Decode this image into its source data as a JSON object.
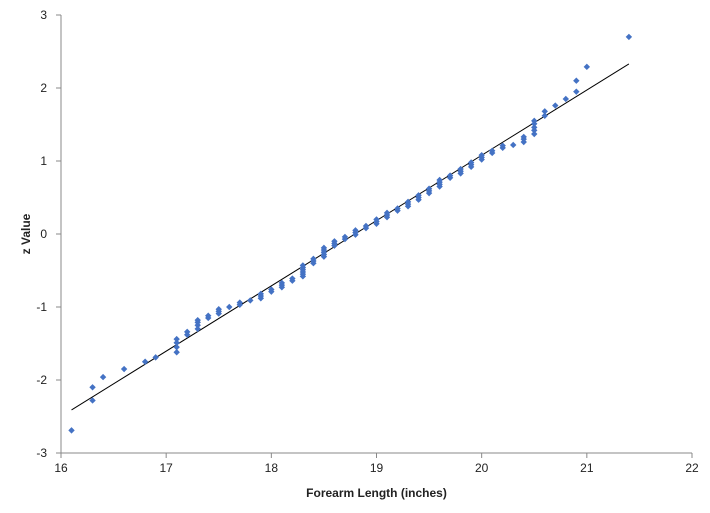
{
  "chart_data": {
    "type": "scatter",
    "title": "",
    "xlabel": "Forearm Length (inches)",
    "ylabel": "z Value",
    "xlim": [
      16,
      22
    ],
    "ylim": [
      -3,
      3
    ],
    "xticks": [
      "16",
      "17",
      "18",
      "19",
      "20",
      "21",
      "22"
    ],
    "yticks": [
      "-3",
      "-2",
      "-1",
      "0",
      "1",
      "2",
      "3"
    ],
    "grid": false,
    "legend": "none",
    "marker": "diamond",
    "colors": {
      "points": "#4472C4",
      "trendline": "#000000",
      "axis": "#888888"
    },
    "trendline": {
      "x": [
        16.1,
        21.4
      ],
      "y": [
        -2.41,
        2.33
      ]
    },
    "points": [
      [
        16.1,
        -2.69
      ],
      [
        16.3,
        -2.28
      ],
      [
        16.3,
        -2.1
      ],
      [
        16.4,
        -1.96
      ],
      [
        16.6,
        -1.85
      ],
      [
        16.8,
        -1.75
      ],
      [
        16.9,
        -1.69
      ],
      [
        17.1,
        -1.62
      ],
      [
        17.1,
        -1.55
      ],
      [
        17.1,
        -1.49
      ],
      [
        17.1,
        -1.44
      ],
      [
        17.2,
        -1.38
      ],
      [
        17.2,
        -1.34
      ],
      [
        17.3,
        -1.3
      ],
      [
        17.3,
        -1.25
      ],
      [
        17.3,
        -1.21
      ],
      [
        17.3,
        -1.18
      ],
      [
        17.4,
        -1.15
      ],
      [
        17.4,
        -1.12
      ],
      [
        17.5,
        -1.09
      ],
      [
        17.5,
        -1.06
      ],
      [
        17.5,
        -1.03
      ],
      [
        17.6,
        -1.0
      ],
      [
        17.7,
        -0.97
      ],
      [
        17.7,
        -0.94
      ],
      [
        17.8,
        -0.91
      ],
      [
        17.9,
        -0.88
      ],
      [
        17.9,
        -0.85
      ],
      [
        17.9,
        -0.82
      ],
      [
        18.0,
        -0.79
      ],
      [
        18.0,
        -0.76
      ],
      [
        18.1,
        -0.73
      ],
      [
        18.1,
        -0.7
      ],
      [
        18.1,
        -0.67
      ],
      [
        18.2,
        -0.64
      ],
      [
        18.2,
        -0.61
      ],
      [
        18.3,
        -0.58
      ],
      [
        18.3,
        -0.55
      ],
      [
        18.3,
        -0.52
      ],
      [
        18.3,
        -0.49
      ],
      [
        18.3,
        -0.46
      ],
      [
        18.3,
        -0.43
      ],
      [
        18.4,
        -0.4
      ],
      [
        18.4,
        -0.37
      ],
      [
        18.4,
        -0.34
      ],
      [
        18.5,
        -0.31
      ],
      [
        18.5,
        -0.28
      ],
      [
        18.5,
        -0.25
      ],
      [
        18.5,
        -0.22
      ],
      [
        18.5,
        -0.19
      ],
      [
        18.6,
        -0.16
      ],
      [
        18.6,
        -0.13
      ],
      [
        18.6,
        -0.1
      ],
      [
        18.7,
        -0.07
      ],
      [
        18.7,
        -0.04
      ],
      [
        18.8,
        -0.01
      ],
      [
        18.8,
        0.02
      ],
      [
        18.8,
        0.05
      ],
      [
        18.9,
        0.08
      ],
      [
        18.9,
        0.11
      ],
      [
        19.0,
        0.14
      ],
      [
        19.0,
        0.17
      ],
      [
        19.0,
        0.2
      ],
      [
        19.1,
        0.23
      ],
      [
        19.1,
        0.26
      ],
      [
        19.1,
        0.29
      ],
      [
        19.2,
        0.32
      ],
      [
        19.2,
        0.35
      ],
      [
        19.3,
        0.38
      ],
      [
        19.3,
        0.41
      ],
      [
        19.3,
        0.44
      ],
      [
        19.4,
        0.47
      ],
      [
        19.4,
        0.5
      ],
      [
        19.4,
        0.53
      ],
      [
        19.5,
        0.56
      ],
      [
        19.5,
        0.59
      ],
      [
        19.5,
        0.62
      ],
      [
        19.6,
        0.65
      ],
      [
        19.6,
        0.68
      ],
      [
        19.6,
        0.71
      ],
      [
        19.6,
        0.74
      ],
      [
        19.7,
        0.77
      ],
      [
        19.7,
        0.8
      ],
      [
        19.8,
        0.83
      ],
      [
        19.8,
        0.86
      ],
      [
        19.8,
        0.89
      ],
      [
        19.9,
        0.92
      ],
      [
        19.9,
        0.95
      ],
      [
        19.9,
        0.98
      ],
      [
        20.0,
        1.02
      ],
      [
        20.0,
        1.05
      ],
      [
        20.0,
        1.08
      ],
      [
        20.1,
        1.11
      ],
      [
        20.1,
        1.14
      ],
      [
        20.2,
        1.18
      ],
      [
        20.2,
        1.21
      ],
      [
        20.3,
        1.22
      ],
      [
        20.4,
        1.26
      ],
      [
        20.4,
        1.3
      ],
      [
        20.4,
        1.33
      ],
      [
        20.5,
        1.37
      ],
      [
        20.5,
        1.42
      ],
      [
        20.5,
        1.46
      ],
      [
        20.5,
        1.51
      ],
      [
        20.5,
        1.55
      ],
      [
        20.6,
        1.62
      ],
      [
        20.6,
        1.68
      ],
      [
        20.7,
        1.76
      ],
      [
        20.8,
        1.85
      ],
      [
        20.9,
        1.95
      ],
      [
        20.9,
        2.1
      ],
      [
        21.0,
        2.29
      ],
      [
        21.4,
        2.7
      ]
    ]
  }
}
